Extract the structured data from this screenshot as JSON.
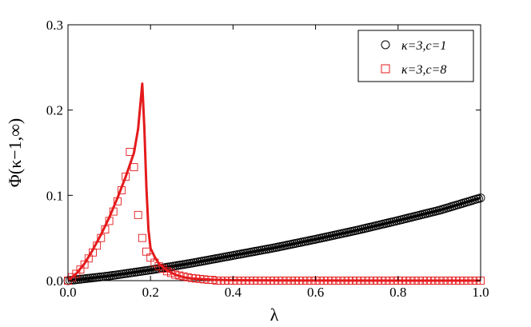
{
  "chart_data": {
    "type": "line",
    "xlabel": "λ",
    "ylabel": "Φ(κ−1,∞)",
    "xlim": [
      0.0,
      1.0
    ],
    "ylim": [
      0.0,
      0.3
    ],
    "x_ticks": [
      "0.0",
      "0.2",
      "0.4",
      "0.6",
      "0.8",
      "1.0"
    ],
    "y_ticks": [
      "0.0",
      "0.1",
      "0.2",
      "0.3"
    ],
    "grid": false,
    "legend_position": "top-right",
    "series": [
      {
        "name": "κ=3,c=1",
        "color": "#000000",
        "marker": "circle",
        "line_x": [
          0.0,
          0.1,
          0.2,
          0.3,
          0.4,
          0.5,
          0.6,
          0.7,
          0.8,
          0.9,
          1.0
        ],
        "line_y": [
          0.0,
          0.0055,
          0.0125,
          0.0205,
          0.0295,
          0.0385,
          0.0485,
          0.059,
          0.0705,
          0.0825,
          0.097
        ],
        "markers": {
          "x_start": 0.0,
          "x_end": 1.0,
          "count": 201
        }
      },
      {
        "name": "κ=3,c=8",
        "color": "#e41a1c",
        "marker": "square",
        "line_x": [
          0.0,
          0.02,
          0.04,
          0.06,
          0.08,
          0.1,
          0.12,
          0.14,
          0.16,
          0.17,
          0.18,
          0.185,
          0.19,
          0.195,
          0.2,
          0.21,
          0.22,
          0.24,
          0.26,
          0.28,
          0.3,
          0.35,
          0.4,
          0.5,
          0.6,
          0.8,
          1.0
        ],
        "line_y": [
          0.0,
          0.008,
          0.02,
          0.036,
          0.054,
          0.074,
          0.097,
          0.122,
          0.15,
          0.178,
          0.231,
          0.18,
          0.11,
          0.06,
          0.038,
          0.028,
          0.02,
          0.012,
          0.007,
          0.004,
          0.0025,
          0.001,
          0.0005,
          0.0002,
          0.0001,
          0.0,
          0.0
        ],
        "markers_x": [
          0.0,
          0.01,
          0.02,
          0.03,
          0.04,
          0.05,
          0.06,
          0.07,
          0.08,
          0.09,
          0.1,
          0.11,
          0.12,
          0.13,
          0.14,
          0.15,
          0.16,
          0.17,
          0.18,
          0.19,
          0.2,
          0.21,
          0.22,
          0.23,
          0.24,
          0.25,
          0.26,
          0.27,
          0.28,
          0.29,
          0.3,
          0.31,
          0.32,
          0.33,
          0.34,
          0.35
        ],
        "markers_y": [
          0.0,
          0.004,
          0.008,
          0.013,
          0.019,
          0.026,
          0.033,
          0.041,
          0.05,
          0.06,
          0.07,
          0.081,
          0.093,
          0.106,
          0.122,
          0.151,
          0.133,
          0.077,
          0.05,
          0.034,
          0.027,
          0.021,
          0.017,
          0.014,
          0.011,
          0.009,
          0.007,
          0.006,
          0.005,
          0.004,
          0.003,
          0.0025,
          0.002,
          0.0015,
          0.001,
          0.0008
        ],
        "markers_flat": {
          "x_start": 0.36,
          "x_end": 1.0,
          "count": 65,
          "y": 0.0
        }
      }
    ]
  }
}
